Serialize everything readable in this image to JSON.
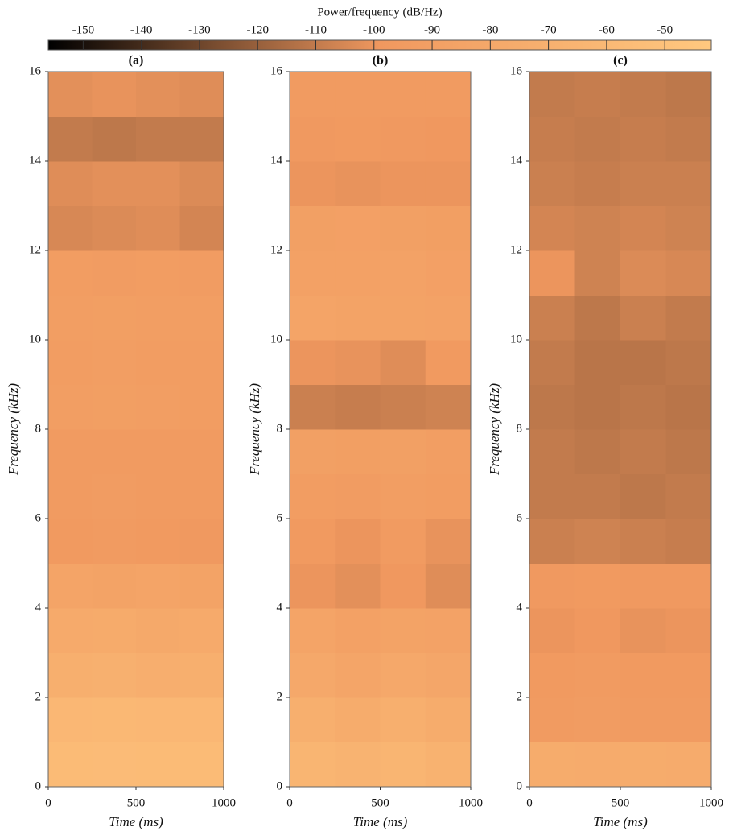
{
  "colorbar": {
    "label": "Power/frequency (dB/Hz)",
    "lim": [
      -156,
      -42
    ],
    "ticks": [
      -150,
      -140,
      -130,
      -120,
      -110,
      -100,
      -90,
      -80,
      -70,
      -60,
      -50
    ],
    "colors": [
      "#000000",
      "#f0985f",
      "#ffc87f"
    ]
  },
  "chart_data": [
    {
      "type": "heatmap",
      "title": "(a)",
      "xlabel": "Time (ms)",
      "ylabel": "Frequency (kHz)",
      "xbins": [
        0,
        250,
        500,
        750,
        1000
      ],
      "ybins": [
        0,
        1,
        2,
        3,
        4,
        5,
        6,
        7,
        8,
        9,
        10,
        11,
        12,
        13,
        14,
        15,
        16
      ],
      "z": [
        [
          -58,
          -57,
          -58,
          -58
        ],
        [
          -62,
          -61,
          -62,
          -62
        ],
        [
          -72,
          -71,
          -73,
          -72
        ],
        [
          -78,
          -77,
          -79,
          -78
        ],
        [
          -85,
          -86,
          -85,
          -86
        ],
        [
          -97,
          -96,
          -97,
          -98
        ],
        [
          -95,
          -94,
          -96,
          -95
        ],
        [
          -95,
          -96,
          -95,
          -95
        ],
        [
          -92,
          -91,
          -92,
          -93
        ],
        [
          -93,
          -92,
          -93,
          -93
        ],
        [
          -92,
          -91,
          -92,
          -92
        ],
        [
          -93,
          -94,
          -93,
          -94
        ],
        [
          -105,
          -104,
          -103,
          -106
        ],
        [
          -103,
          -102,
          -102,
          -104
        ],
        [
          -110,
          -111,
          -110,
          -110
        ],
        [
          -102,
          -101,
          -102,
          -103
        ]
      ],
      "xlim": [
        0,
        1000
      ],
      "xticks": [
        0,
        500,
        1000
      ],
      "ylim": [
        0,
        16
      ],
      "yticks": [
        0,
        2,
        4,
        6,
        8,
        10,
        12,
        14,
        16
      ]
    },
    {
      "type": "heatmap",
      "title": "(b)",
      "xlabel": "Time (ms)",
      "ylabel": "Frequency (kHz)",
      "xbins": [
        0,
        250,
        500,
        750,
        1000
      ],
      "ybins": [
        0,
        1,
        2,
        3,
        4,
        5,
        6,
        7,
        8,
        9,
        10,
        11,
        12,
        13,
        14,
        15,
        16
      ],
      "z": [
        [
          -65,
          -67,
          -65,
          -68
        ],
        [
          -72,
          -75,
          -72,
          -75
        ],
        [
          -80,
          -83,
          -80,
          -82
        ],
        [
          -85,
          -88,
          -86,
          -87
        ],
        [
          -100,
          -102,
          -99,
          -103
        ],
        [
          -97,
          -100,
          -96,
          -101
        ],
        [
          -93,
          -94,
          -92,
          -93
        ],
        [
          -90,
          -91,
          -90,
          -92
        ],
        [
          -108,
          -109,
          -108,
          -107
        ],
        [
          -100,
          -101,
          -103,
          -97
        ],
        [
          -85,
          -86,
          -86,
          -87
        ],
        [
          -88,
          -88,
          -87,
          -89
        ],
        [
          -90,
          -89,
          -90,
          -91
        ],
        [
          -100,
          -101,
          -100,
          -100
        ],
        [
          -98,
          -97,
          -98,
          -99
        ],
        [
          -96,
          -95,
          -96,
          -96
        ]
      ],
      "xlim": [
        0,
        1000
      ],
      "xticks": [
        0,
        500,
        1000
      ],
      "ylim": [
        0,
        16
      ],
      "yticks": [
        0,
        2,
        4,
        6,
        8,
        10,
        12,
        14,
        16
      ]
    },
    {
      "type": "heatmap",
      "title": "(c)",
      "xlabel": "Time (ms)",
      "ylabel": "Frequency (kHz)",
      "xbins": [
        0,
        250,
        500,
        750,
        1000
      ],
      "ybins": [
        0,
        1,
        2,
        3,
        4,
        5,
        6,
        7,
        8,
        9,
        10,
        11,
        12,
        13,
        14,
        15,
        16
      ],
      "z": [
        [
          -75,
          -76,
          -75,
          -76
        ],
        [
          -95,
          -94,
          -95,
          -96
        ],
        [
          -97,
          -96,
          -97,
          -97
        ],
        [
          -100,
          -99,
          -101,
          -100
        ],
        [
          -98,
          -97,
          -98,
          -98
        ],
        [
          -108,
          -107,
          -108,
          -109
        ],
        [
          -110,
          -110,
          -111,
          -110
        ],
        [
          -110,
          -111,
          -110,
          -111
        ],
        [
          -111,
          -112,
          -111,
          -112
        ],
        [
          -110,
          -112,
          -112,
          -111
        ],
        [
          -108,
          -111,
          -108,
          -110
        ],
        [
          -100,
          -107,
          -104,
          -105
        ],
        [
          -106,
          -107,
          -106,
          -107
        ],
        [
          -108,
          -109,
          -108,
          -108
        ],
        [
          -109,
          -110,
          -109,
          -110
        ],
        [
          -110,
          -109,
          -110,
          -111
        ]
      ],
      "xlim": [
        0,
        1000
      ],
      "xticks": [
        0,
        500,
        1000
      ],
      "ylim": [
        0,
        16
      ],
      "yticks": [
        0,
        2,
        4,
        6,
        8,
        10,
        12,
        14,
        16
      ]
    }
  ]
}
